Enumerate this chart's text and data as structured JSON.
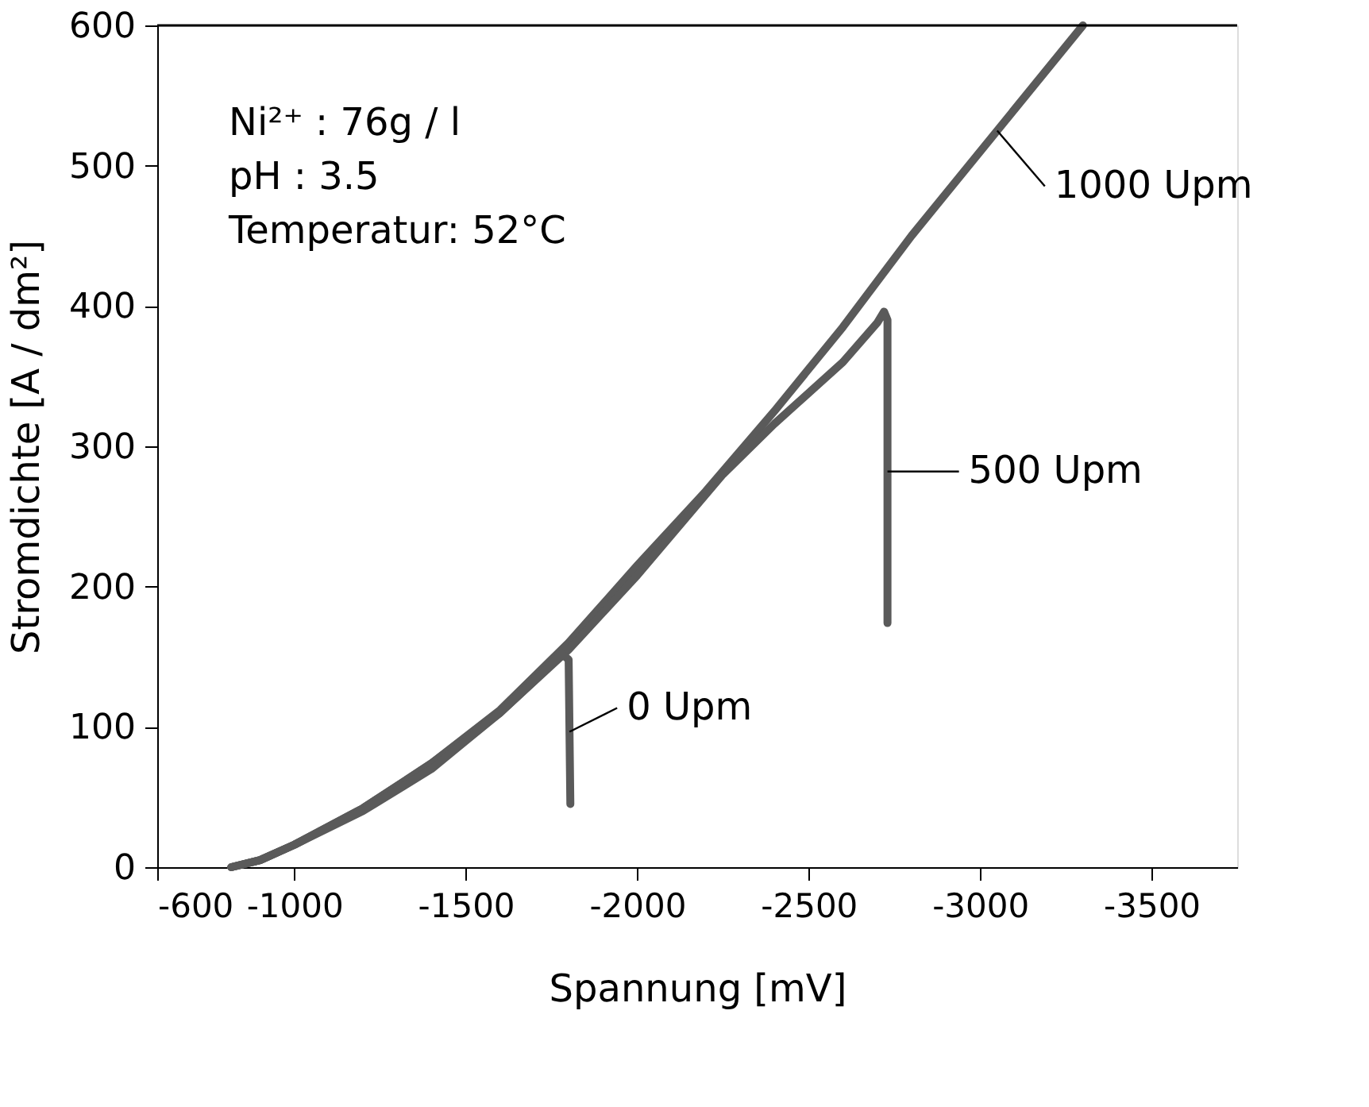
{
  "chart_data": {
    "type": "line",
    "xlabel": "Spannung [mV]",
    "ylabel": "Stromdichte [A / dm²]",
    "xlim": [
      -600,
      -3750
    ],
    "xticks": [
      -600,
      -1000,
      -1500,
      -2000,
      -2500,
      -3000,
      -3500
    ],
    "ylim": [
      0,
      600
    ],
    "yticks": [
      0,
      100,
      200,
      300,
      400,
      500,
      600
    ],
    "grid": false,
    "legend": false,
    "marker": "none",
    "line_style": "solid",
    "annotations": [
      "Ni²⁺          : 76g / l",
      "pH              : 3.5",
      "Temperatur: 52°C"
    ],
    "series": [
      {
        "name": "1000 Upm",
        "color": "#5a5a5a",
        "x": [
          -816,
          -900,
          -1000,
          -1200,
          -1400,
          -1600,
          -1800,
          -2000,
          -2200,
          -2400,
          -2600,
          -2800,
          -3300
        ],
        "values": [
          0,
          5,
          16,
          42,
          74,
          112,
          160,
          215,
          268,
          325,
          385,
          450,
          600
        ]
      },
      {
        "name": "500 Upm",
        "color": "#5a5a5a",
        "x": [
          -816,
          -900,
          -1000,
          -1200,
          -1400,
          -1600,
          -1800,
          -2000,
          -2250,
          -2400,
          -2600,
          -2700,
          -2720,
          -2730,
          -2730
        ],
        "values": [
          0,
          5,
          16,
          42,
          74,
          110,
          155,
          208,
          280,
          316,
          360,
          388,
          396,
          390,
          174
        ]
      },
      {
        "name": "0 Upm",
        "color": "#5a5a5a",
        "x": [
          -816,
          -900,
          -1000,
          -1200,
          -1400,
          -1500,
          -1600,
          -1700,
          -1780,
          -1800,
          -1805
        ],
        "values": [
          0,
          5,
          16,
          40,
          70,
          90,
          110,
          133,
          152,
          148,
          45
        ]
      }
    ]
  }
}
